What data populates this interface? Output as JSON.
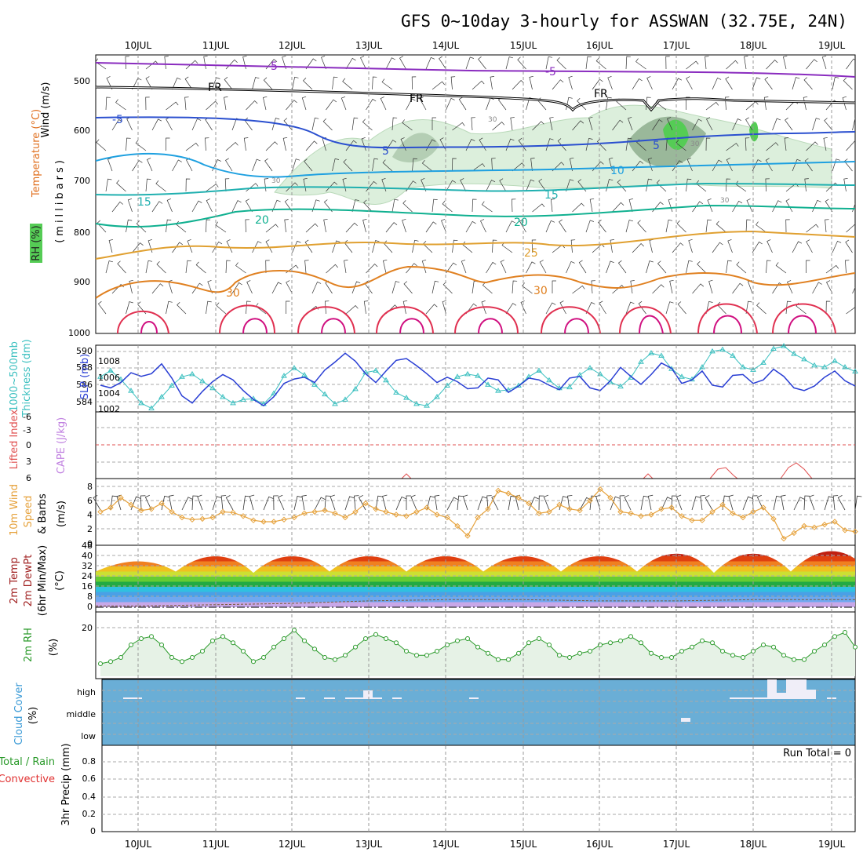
{
  "title": "GFS 0~10day 3-hourly for ASSWAN (32.75E, 24N)",
  "dates": [
    "10JUL",
    "11JUL",
    "12JUL",
    "13JUL",
    "14JUL",
    "15JUL",
    "16JUL",
    "17JUL",
    "18JUL",
    "19JUL"
  ],
  "colors": {
    "rh_fill": "#dcefdc",
    "rh_dark": "#9ab89a",
    "rh_green": "#55cc55",
    "thickness": "#2a3fd4",
    "slp": "#3cc0c0",
    "wind10": "#e6a23c",
    "rh2m": "#2a9a2a",
    "cloud": "#6aaed6",
    "lifted": "#e05050",
    "cape": "#c080e0"
  },
  "panels": {
    "upper": {
      "ylabel_wind": "Wind (m/s)",
      "ylabel_temp": "Temperature (°C)",
      "ylabel_rh": "RH (%)",
      "ylabel_mb": "(millibars)",
      "ticks": [
        "500",
        "600",
        "700",
        "800",
        "900",
        "1000"
      ],
      "contour_labels": [
        "-5",
        "-5",
        "FR",
        "FR",
        "FR",
        "-5",
        "5",
        "5",
        "10",
        "15",
        "15",
        "20",
        "20",
        "25",
        "30",
        "30",
        "30",
        "30",
        "30",
        "30"
      ]
    },
    "thickness": {
      "ylabel_a": "1000~500mb",
      "ylabel_b": "Thickness (dm)",
      "ylabel_c": "SLP (mb)",
      "left_ticks": [
        "590",
        "588",
        "586",
        "584"
      ],
      "right_ticks": [
        "1008",
        "1006",
        "1004",
        "1002"
      ]
    },
    "cape": {
      "ylabel_a": "Lifted Index",
      "ylabel_b": "CAPE (J/kg)",
      "ticks": [
        "-6",
        "-3",
        "0",
        "3",
        "6"
      ]
    },
    "wind": {
      "ylabel_a": "10m Wind",
      "ylabel_b": "Speed",
      "ylabel_c": "& Barbs",
      "ylabel_d": "(m/s)",
      "ticks": [
        "8",
        "6",
        "4",
        "2",
        "0"
      ]
    },
    "temp": {
      "ylabel_a": "2m Temp",
      "ylabel_b": "2m DewPt",
      "ylabel_c": "(6hr Min/Max)",
      "ylabel_d": "(°C)",
      "ticks": [
        "48",
        "40",
        "32",
        "24",
        "16",
        "8",
        "0"
      ]
    },
    "rh": {
      "ylabel_a": "2m RH",
      "ylabel_b": "(%)",
      "ticks": [
        "20"
      ]
    },
    "cloud": {
      "ylabel_a": "Cloud Cover",
      "ylabel_b": "(%)",
      "levels": [
        "high",
        "middle",
        "low"
      ]
    },
    "precip": {
      "ylabel_a": "Total / Rain",
      "ylabel_b": "Convective",
      "ylabel_c": "3hr Precip (mm)",
      "ticks": [
        "0.8",
        "0.6",
        "0.4",
        "0.2",
        "0"
      ],
      "run_total": "Run Total = 0"
    }
  },
  "chart_data": [
    {
      "type": "line",
      "title": "1000~500mb Thickness (dm) / SLP (mb)",
      "x": "3-hourly steps, 9 Jul 12Z to 19 Jul 09Z",
      "series": [
        {
          "name": "Thickness (dm)",
          "ylim": [
            583,
            590.5
          ],
          "values": [
            586.0,
            585.7,
            586.3,
            587.4,
            587.0,
            587.3,
            588.4,
            586.8,
            584.8,
            584.0,
            585.3,
            586.4,
            587.2,
            586.6,
            585.4,
            584.4,
            583.7,
            584.7,
            586.2,
            586.7,
            586.9,
            586.3,
            587.7,
            588.6,
            589.6,
            588.7,
            587.3,
            586.3,
            587.6,
            588.8,
            589.0,
            588.2,
            587.3,
            586.3,
            586.9,
            586.4,
            585.6,
            585.7,
            586.8,
            586.6,
            585.2,
            585.9,
            586.8,
            586.6,
            586.0,
            585.5,
            586.8,
            587.0,
            585.7,
            585.4,
            586.5,
            588.0,
            587.0,
            586.1,
            587.2,
            588.5,
            587.9,
            586.2,
            586.6,
            587.6,
            586.0,
            585.8,
            587.1,
            587.2,
            586.2,
            586.6,
            587.8,
            587.0,
            585.7,
            585.4,
            585.9,
            586.9,
            587.6,
            586.5,
            585.9
          ]
        },
        {
          "name": "SLP (mb)",
          "ylim": [
            1001.7,
            1009.3
          ],
          "values": [
            1005.7,
            1006.4,
            1005.4,
            1004.1,
            1002.7,
            1002.1,
            1003.4,
            1004.7,
            1005.7,
            1006.0,
            1005.2,
            1004.4,
            1003.4,
            1002.7,
            1003.1,
            1003.2,
            1002.6,
            1003.8,
            1005.8,
            1006.7,
            1005.9,
            1004.8,
            1003.7,
            1002.6,
            1003.1,
            1004.3,
            1006.2,
            1006.4,
            1005.3,
            1003.9,
            1003.3,
            1002.6,
            1002.4,
            1003.4,
            1004.7,
            1005.7,
            1006.0,
            1005.8,
            1004.8,
            1004.1,
            1004.2,
            1004.7,
            1005.7,
            1006.4,
            1005.3,
            1004.4,
            1004.5,
            1005.9,
            1006.7,
            1006.0,
            1005.1,
            1004.6,
            1005.6,
            1007.4,
            1008.4,
            1008.1,
            1006.6,
            1005.7,
            1005.4,
            1006.8,
            1008.6,
            1008.8,
            1008.1,
            1006.8,
            1006.5,
            1007.3,
            1008.9,
            1009.2,
            1008.3,
            1007.7,
            1007.0,
            1006.8,
            1007.5,
            1006.8,
            1006.3
          ]
        }
      ]
    },
    {
      "type": "line",
      "title": "10m Wind Speed (m/s)",
      "ylim": [
        0,
        8
      ],
      "series": [
        {
          "name": "Speed",
          "values": [
            4.4,
            5.0,
            6.4,
            5.4,
            4.6,
            4.8,
            5.6,
            4.4,
            3.6,
            3.3,
            3.4,
            3.6,
            4.4,
            4.3,
            3.8,
            3.2,
            3.0,
            3.0,
            3.3,
            3.6,
            4.2,
            4.4,
            4.6,
            4.2,
            3.6,
            4.4,
            5.6,
            4.8,
            4.4,
            4.0,
            3.8,
            4.4,
            5.0,
            4.0,
            3.6,
            2.4,
            1.0,
            3.6,
            4.8,
            7.4,
            7.0,
            6.4,
            5.6,
            4.2,
            4.4,
            5.4,
            4.8,
            4.6,
            6.0,
            7.6,
            6.4,
            4.4,
            4.2,
            3.8,
            4.0,
            4.8,
            5.0,
            3.8,
            3.2,
            3.2,
            4.4,
            5.4,
            4.2,
            3.6,
            4.4,
            5.0,
            3.4,
            0.6,
            1.4,
            2.4,
            2.2,
            2.6,
            3.0,
            1.8,
            1.6
          ]
        }
      ]
    },
    {
      "type": "area",
      "title": "2m Temp / 2m DewPt (°C)",
      "ylim": [
        0,
        48
      ],
      "series": [
        {
          "name": "2m Temp",
          "peaks": [
            36,
            40,
            40,
            40,
            40,
            40,
            40,
            42,
            42,
            44
          ],
          "troughs": [
            28,
            27,
            28,
            28,
            28,
            28,
            28,
            27,
            28,
            28
          ]
        },
        {
          "name": "2m DewPt",
          "values": [
            1,
            2,
            3,
            5,
            6,
            6,
            5,
            5,
            6,
            6
          ]
        }
      ]
    },
    {
      "type": "area",
      "title": "2m RH (%)",
      "ylim": [
        0,
        30
      ],
      "series": [
        {
          "name": "2m RH",
          "values": [
            6,
            7,
            9,
            15,
            18,
            19,
            15,
            9,
            7,
            9,
            12,
            17,
            19,
            16,
            12,
            7,
            9,
            14,
            18,
            22,
            17,
            13,
            9,
            8,
            10,
            14,
            18,
            20,
            18,
            16,
            12,
            10,
            10,
            12,
            15,
            17,
            18,
            14,
            11,
            8,
            8,
            11,
            16,
            18,
            15,
            10,
            9,
            11,
            12,
            15,
            16,
            17,
            19,
            16,
            11,
            9,
            9,
            12,
            14,
            17,
            16,
            12,
            10,
            9,
            12,
            15,
            14,
            10,
            8,
            8,
            12,
            15,
            19,
            21,
            14
          ]
        }
      ]
    },
    {
      "type": "bar",
      "title": "3hr Precip (mm)",
      "ylim": [
        0,
        1
      ],
      "series": [
        {
          "name": "Total",
          "values": [
            0
          ]
        }
      ],
      "run_total": 0
    }
  ]
}
